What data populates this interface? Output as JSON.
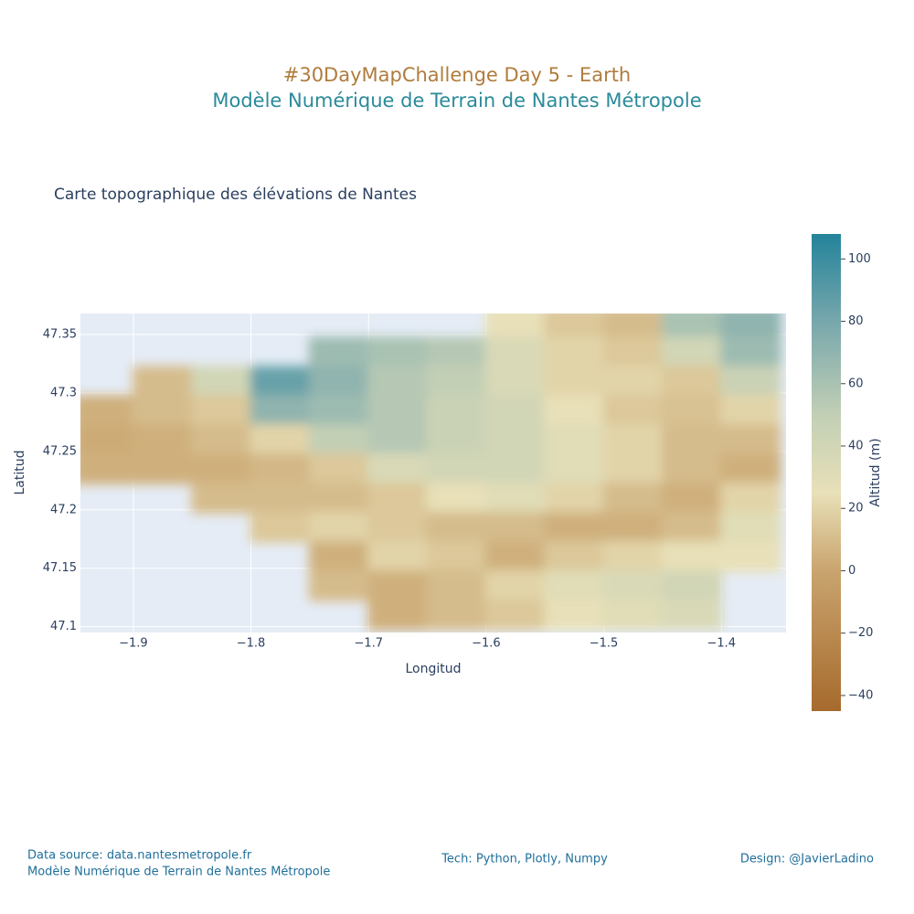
{
  "chart_data": {
    "type": "contour",
    "title": "#30DayMapChallenge Day 5 - Earth",
    "subtitle": "Modèle Numérique de Terrain de Nantes Métropole",
    "plot_title": "Carte topographique des élévations de Nantes",
    "x_label": "Longitud",
    "y_label": "Latitud",
    "colorbar_title": "Altitud (m)",
    "x": [
      -1.925,
      -1.875,
      -1.825,
      -1.775,
      -1.725,
      -1.675,
      -1.625,
      -1.575,
      -1.525,
      -1.475,
      -1.425,
      -1.375
    ],
    "y": [
      47.36,
      47.335,
      47.31,
      47.285,
      47.26,
      47.235,
      47.21,
      47.185,
      47.16,
      47.135,
      47.11
    ],
    "z": [
      [
        null,
        null,
        null,
        null,
        null,
        null,
        null,
        25,
        15,
        10,
        60,
        70
      ],
      [
        null,
        null,
        null,
        null,
        65,
        60,
        55,
        35,
        20,
        15,
        40,
        65
      ],
      [
        null,
        10,
        40,
        85,
        70,
        55,
        50,
        35,
        20,
        20,
        15,
        45
      ],
      [
        5,
        10,
        15,
        70,
        65,
        55,
        45,
        40,
        25,
        15,
        12,
        20
      ],
      [
        3,
        5,
        10,
        20,
        50,
        55,
        45,
        40,
        30,
        20,
        10,
        10
      ],
      [
        5,
        5,
        5,
        8,
        15,
        35,
        40,
        40,
        30,
        20,
        10,
        5
      ],
      [
        null,
        null,
        10,
        10,
        10,
        15,
        25,
        30,
        20,
        10,
        5,
        20
      ],
      [
        null,
        null,
        null,
        15,
        20,
        15,
        10,
        10,
        5,
        5,
        10,
        30
      ],
      [
        null,
        null,
        null,
        null,
        5,
        20,
        15,
        5,
        15,
        20,
        25,
        25
      ],
      [
        null,
        null,
        null,
        null,
        10,
        5,
        10,
        20,
        30,
        35,
        40,
        null
      ],
      [
        null,
        null,
        null,
        null,
        null,
        5,
        10,
        15,
        25,
        30,
        35,
        null
      ]
    ],
    "xlim": [
      -1.945,
      -1.345
    ],
    "ylim": [
      47.095,
      47.368
    ],
    "xticks": [
      {
        "value": -1.9,
        "label": "−1.9"
      },
      {
        "value": -1.8,
        "label": "−1.8"
      },
      {
        "value": -1.7,
        "label": "−1.7"
      },
      {
        "value": -1.6,
        "label": "−1.6"
      },
      {
        "value": -1.5,
        "label": "−1.5"
      },
      {
        "value": -1.4,
        "label": "−1.4"
      }
    ],
    "yticks": [
      47.1,
      47.15,
      47.2,
      47.25,
      47.3,
      47.35
    ],
    "zlim": [
      -45,
      108
    ],
    "zticks": [
      {
        "value": -40,
        "label": "−40"
      },
      {
        "value": -20,
        "label": "−20"
      },
      0,
      20,
      40,
      60,
      80,
      100
    ],
    "colorscale": [
      [
        -45,
        "#a66a2c"
      ],
      [
        0,
        "#c9a46e"
      ],
      [
        25,
        "#e8e0b8"
      ],
      [
        50,
        "#c2cfb5"
      ],
      [
        80,
        "#77a7ac"
      ],
      [
        108,
        "#23839a"
      ]
    ],
    "grid": true
  },
  "footer": {
    "source": "Data source: data.nantesmetropole.fr",
    "source_detail": "Modèle Numérique de Terrain de Nantes Métropole",
    "tech": "Tech: Python, Plotly, Numpy",
    "design": "Design: @JavierLadino"
  }
}
